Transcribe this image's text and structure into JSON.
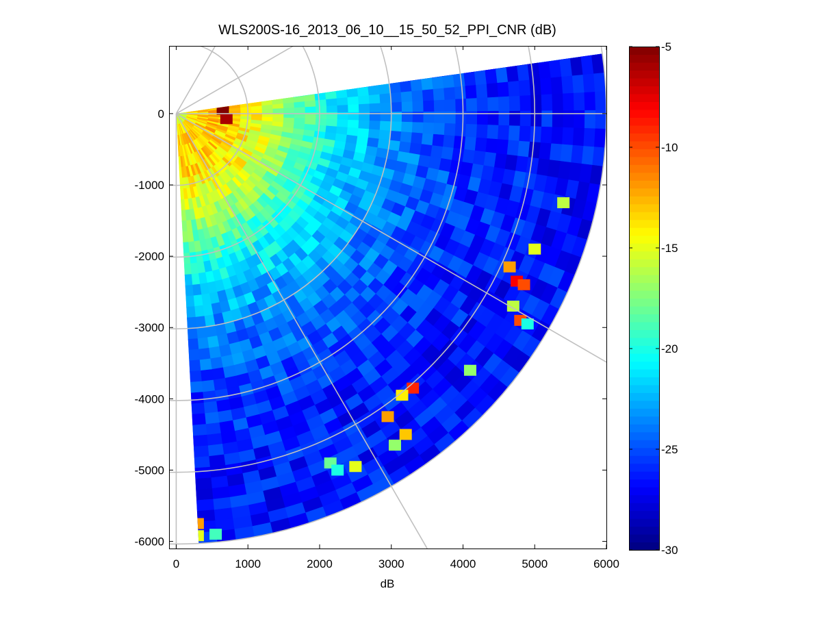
{
  "chart_data": {
    "type": "heatmap",
    "subtype": "polar-ppi-sector",
    "title": "WLS200S-16_2013_06_10__15_50_52_PPI_CNR (dB)",
    "xlabel": "dB",
    "ylabel": "",
    "xlim": [
      -100,
      6000
    ],
    "ylim": [
      -6100,
      950
    ],
    "x_ticks": [
      0,
      1000,
      2000,
      3000,
      4000,
      5000,
      6000
    ],
    "y_ticks": [
      0,
      -1000,
      -2000,
      -3000,
      -4000,
      -5000,
      -6000
    ],
    "colorbar": {
      "colormap": "jet",
      "clim": [
        -30,
        -5
      ],
      "ticks": [
        -5,
        -10,
        -15,
        -20,
        -25,
        -30
      ]
    },
    "sector": {
      "azimuth_range_deg": [
        -87,
        8
      ],
      "max_range_m": 6000,
      "range_gate_m": 150,
      "azimuth_step_deg": 2.5
    },
    "polar_grid": {
      "range_rings": [
        1000,
        2000,
        3000,
        4000,
        5000,
        6000
      ],
      "radial_angles_deg": [
        30,
        60,
        0,
        -30,
        -60,
        -90
      ],
      "color": "#c0c0c0"
    },
    "cnr_profile": {
      "description_points_range_m": [
        0,
        200,
        500,
        800,
        1200,
        1700,
        2300,
        3000,
        4000,
        5000,
        6000
      ],
      "description_points_cnr_db": [
        -17,
        -14,
        -13,
        -13.5,
        -15,
        -18,
        -21,
        -23.5,
        -25.5,
        -26.5,
        -26.5
      ]
    },
    "hotspots": [
      {
        "x": 5400,
        "y": -1250,
        "cnr": -16
      },
      {
        "x": 5000,
        "y": -1900,
        "cnr": -15
      },
      {
        "x": 4650,
        "y": -2150,
        "cnr": -12
      },
      {
        "x": 4750,
        "y": -2350,
        "cnr": -8
      },
      {
        "x": 4850,
        "y": -2400,
        "cnr": -10
      },
      {
        "x": 4700,
        "y": -2700,
        "cnr": -16
      },
      {
        "x": 4800,
        "y": -2900,
        "cnr": -10
      },
      {
        "x": 4900,
        "y": -2950,
        "cnr": -20
      },
      {
        "x": 4100,
        "y": -3600,
        "cnr": -17
      },
      {
        "x": 3300,
        "y": -3850,
        "cnr": -9
      },
      {
        "x": 3150,
        "y": -3950,
        "cnr": -14
      },
      {
        "x": 2950,
        "y": -4250,
        "cnr": -12
      },
      {
        "x": 3200,
        "y": -4500,
        "cnr": -13
      },
      {
        "x": 3050,
        "y": -4650,
        "cnr": -17
      },
      {
        "x": 2150,
        "y": -4900,
        "cnr": -18
      },
      {
        "x": 2250,
        "y": -5000,
        "cnr": -20
      },
      {
        "x": 2500,
        "y": -4950,
        "cnr": -15
      },
      {
        "x": 300,
        "y": -5750,
        "cnr": -12
      },
      {
        "x": 550,
        "y": -5900,
        "cnr": -19
      },
      {
        "x": 300,
        "y": -5920,
        "cnr": -15
      },
      {
        "x": 650,
        "y": 60,
        "cnr": -5
      },
      {
        "x": 700,
        "y": -70,
        "cnr": -6
      }
    ]
  }
}
